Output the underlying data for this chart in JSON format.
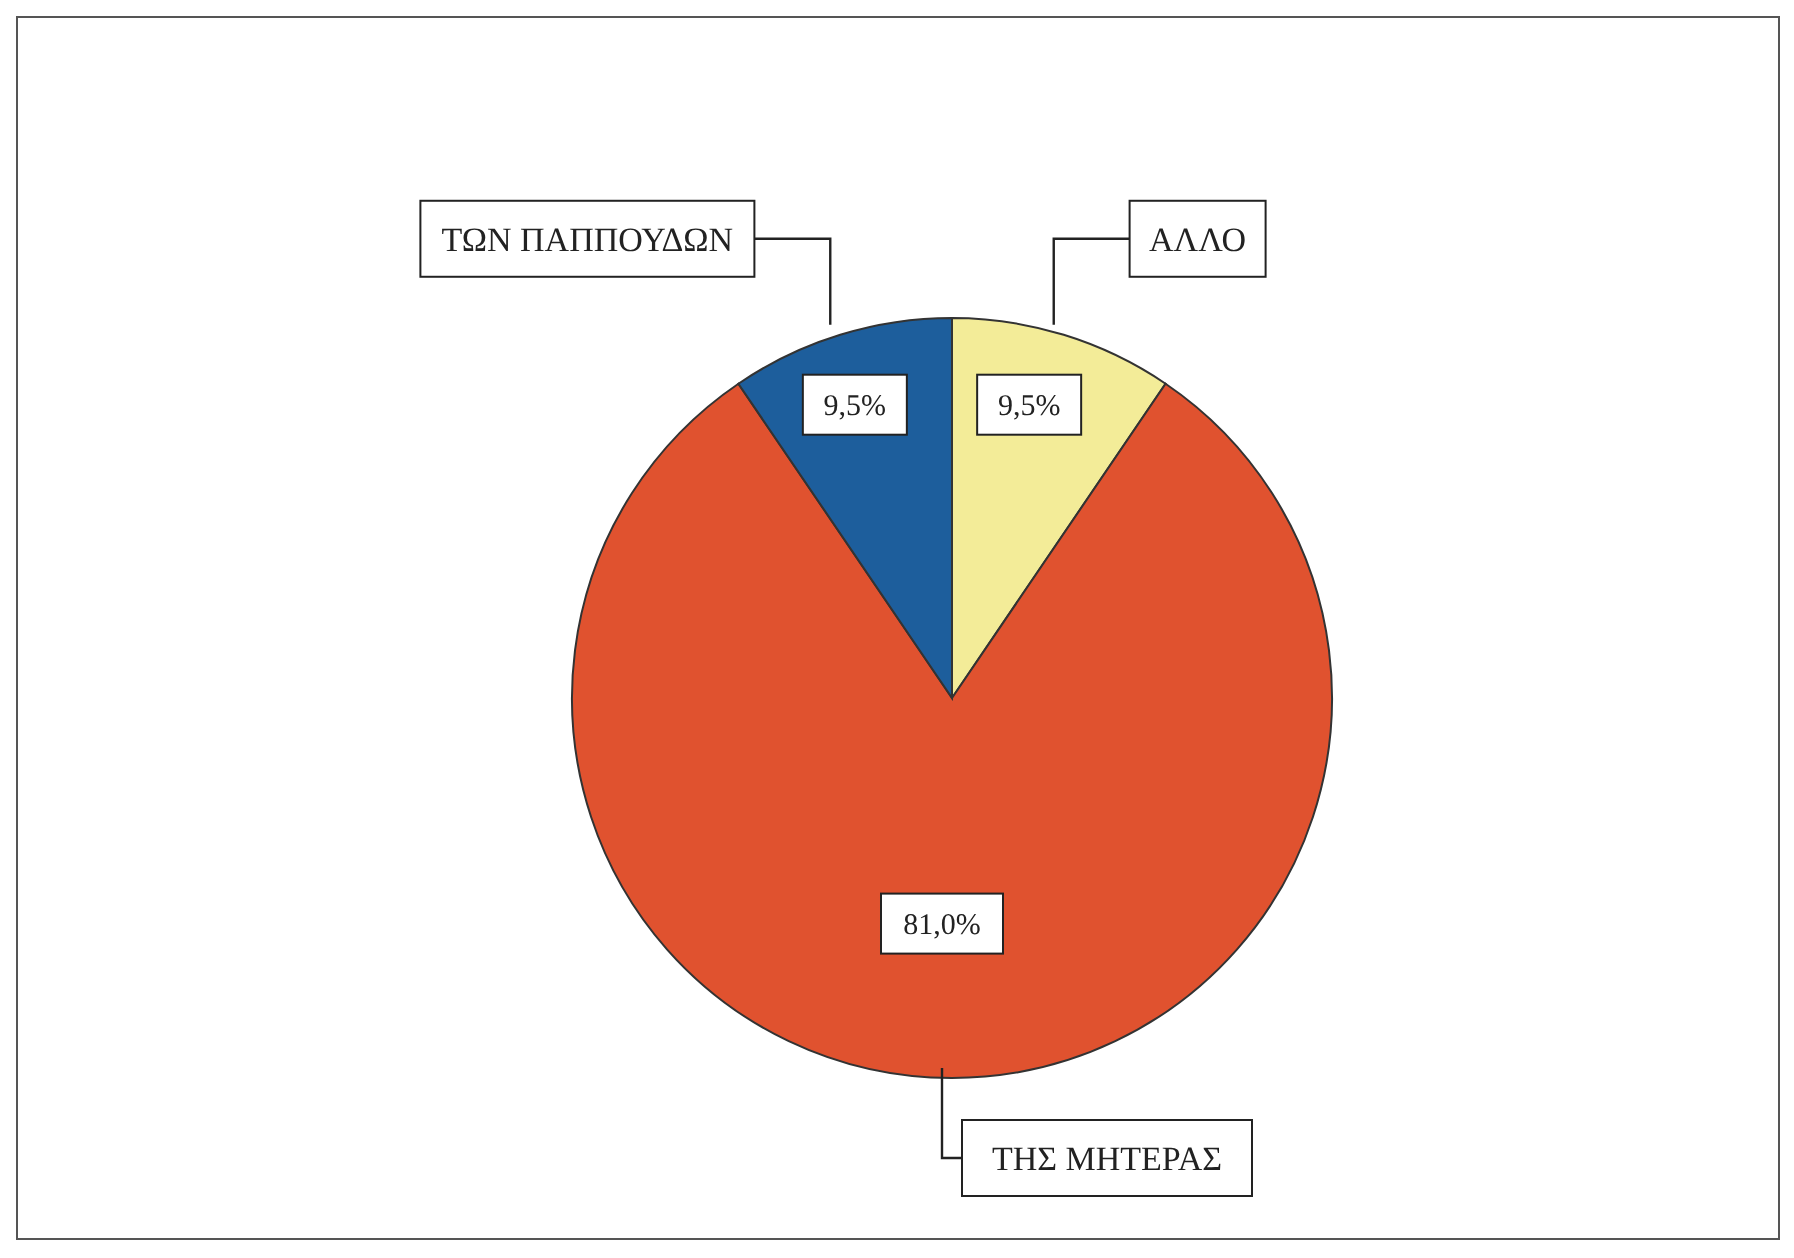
{
  "chart_data": {
    "type": "pie",
    "categories": [
      "ΑΛΛΟ",
      "ΤΗΣ ΜΗΤΕΡΑΣ",
      "ΤΩΝ ΠΑΠΠΟΥΔΩΝ"
    ],
    "values": [
      9.5,
      81.0,
      9.5
    ],
    "colors": [
      "#f3ec98",
      "#e0522f",
      "#1d5e9c"
    ],
    "value_labels": [
      "9,5%",
      "81,0%",
      "9,5%"
    ],
    "legend": false
  }
}
